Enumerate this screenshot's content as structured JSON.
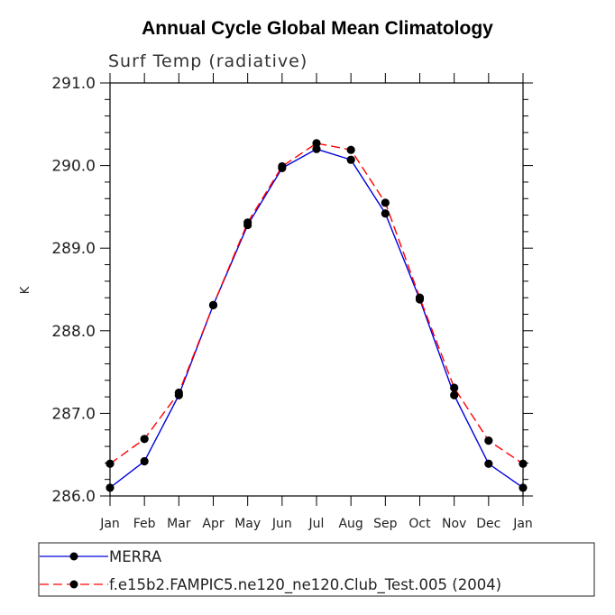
{
  "chart_data": {
    "type": "line",
    "title": "Annual Cycle Global Mean Climatology",
    "subtitle": "Surf Temp (radiative)",
    "xlabel": "",
    "ylabel": "K",
    "categories": [
      "Jan",
      "Feb",
      "Mar",
      "Apr",
      "May",
      "Jun",
      "Jul",
      "Aug",
      "Sep",
      "Oct",
      "Nov",
      "Dec",
      "Jan"
    ],
    "ylim": [
      286.0,
      291.0
    ],
    "yticks": [
      "286.0",
      "287.0",
      "288.0",
      "289.0",
      "290.0",
      "291.0"
    ],
    "grid": false,
    "legend_position": "bottom",
    "series": [
      {
        "name": "MERRA",
        "color": "#0000dd",
        "style": "solid",
        "marker": "circle",
        "values": [
          286.1,
          286.42,
          287.22,
          288.31,
          289.28,
          289.97,
          290.2,
          290.07,
          289.42,
          288.38,
          287.22,
          286.39,
          286.1
        ]
      },
      {
        "name": "f.e15b2.FAMPIC5.ne120_ne120.Club_Test.005 (2004)",
        "color": "#ff0000",
        "style": "dashed",
        "marker": "circle",
        "values": [
          286.39,
          286.69,
          287.25,
          288.31,
          289.31,
          289.99,
          290.27,
          290.19,
          289.55,
          288.4,
          287.31,
          286.67,
          286.39
        ]
      }
    ]
  }
}
